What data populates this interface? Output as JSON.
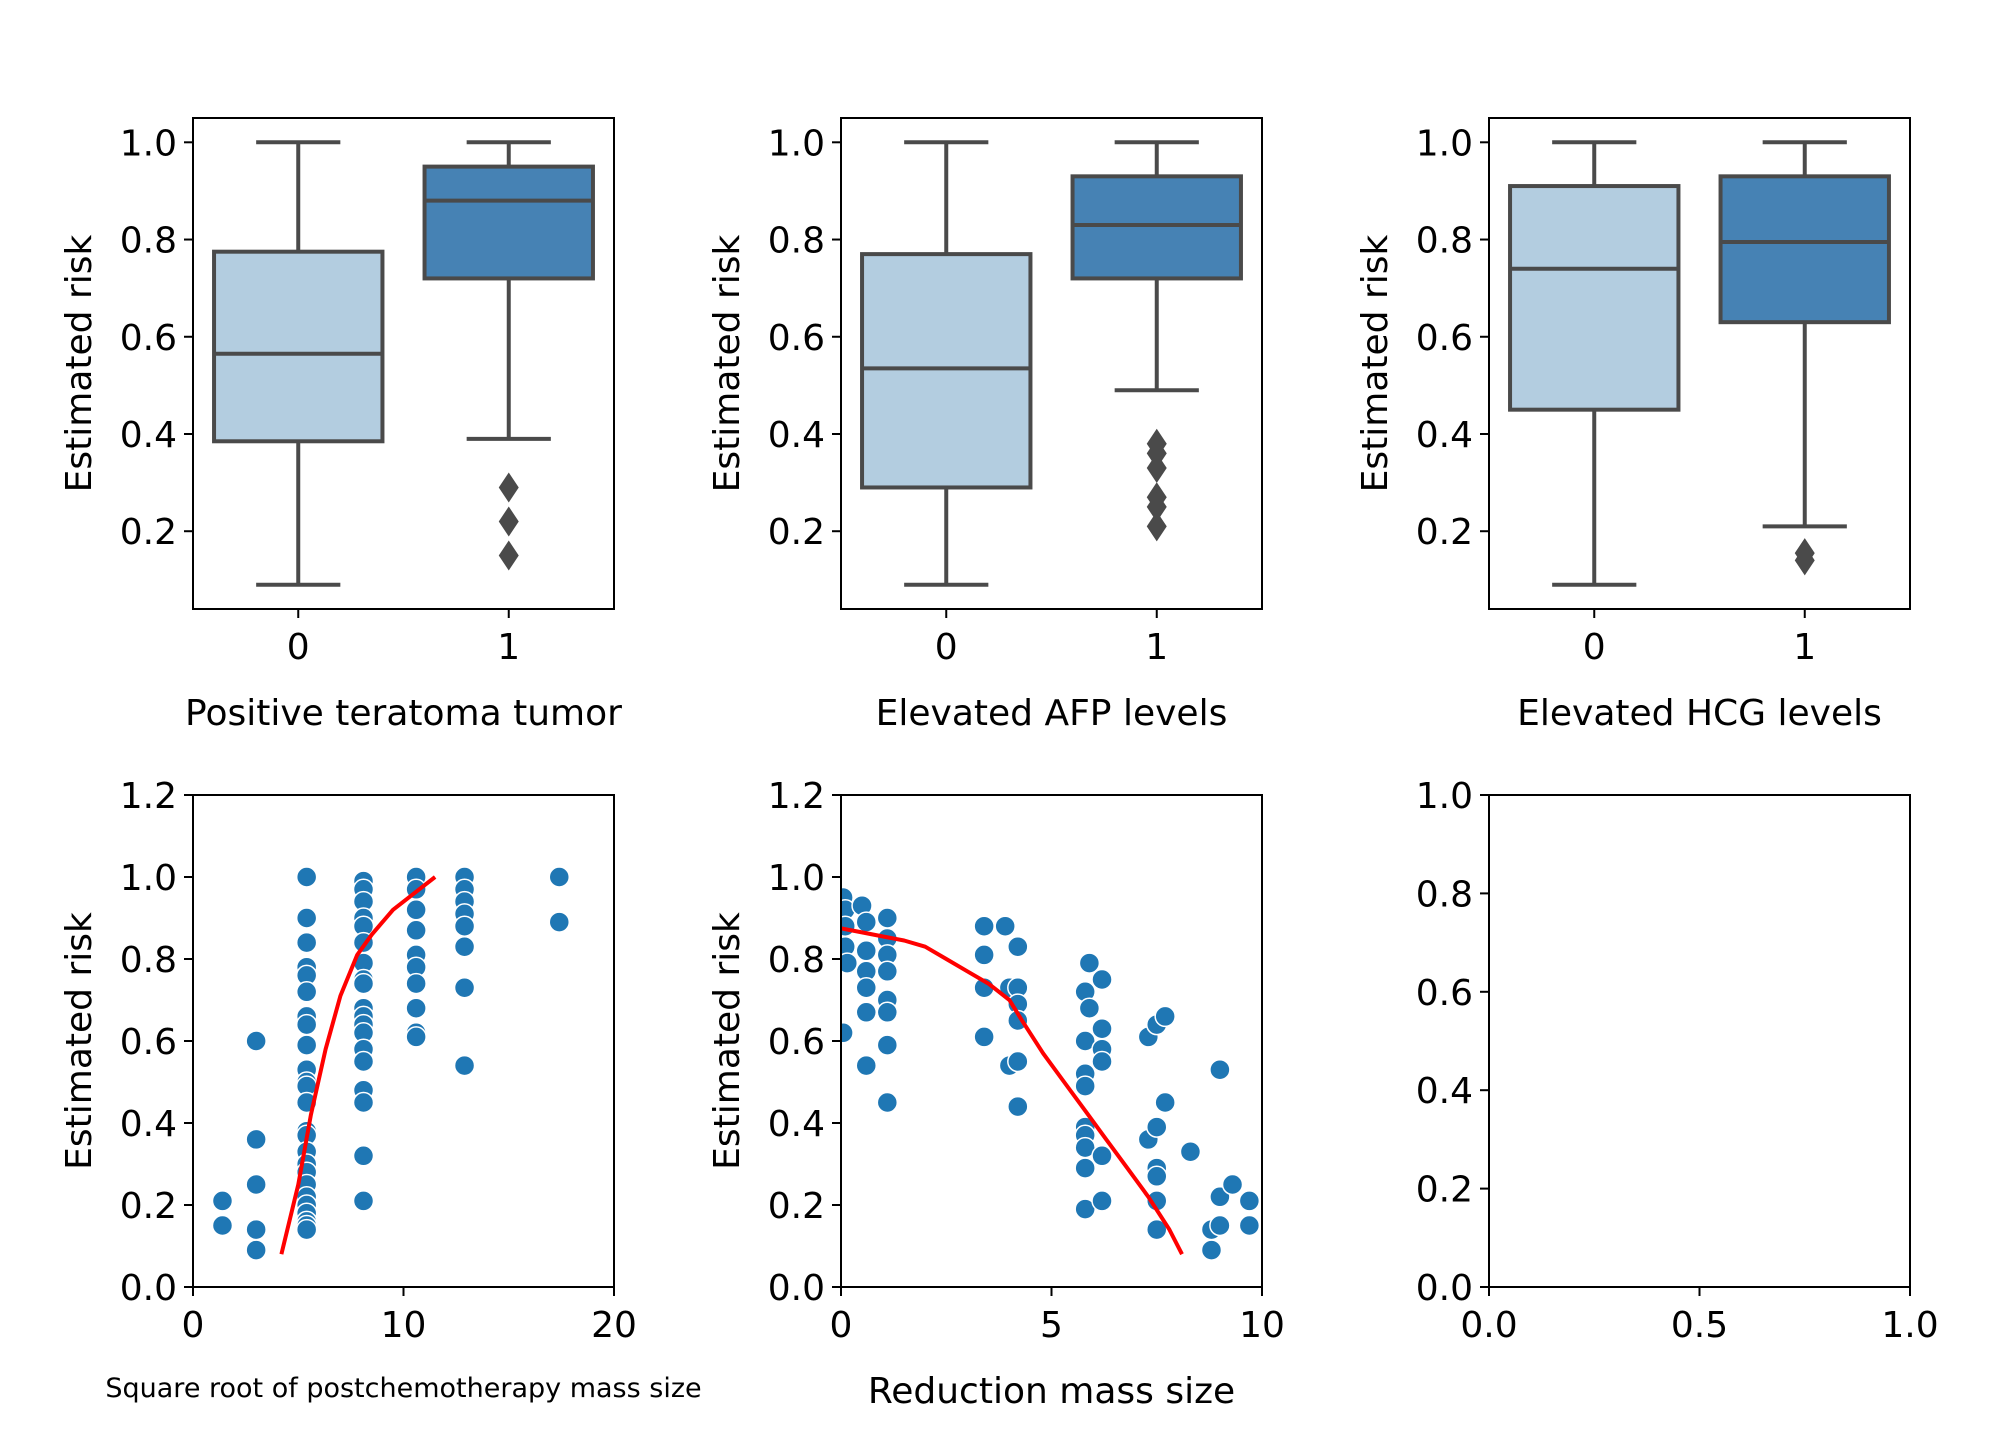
{
  "colors": {
    "box_light": "#b3cde0",
    "box_dark": "#4682b4",
    "box_edge": "#4a4a4a",
    "scatter": "#1f77b4",
    "trend": "#ff0000"
  },
  "chart_data": [
    {
      "type": "box",
      "xlabel": "Positive teratoma tumor",
      "ylabel": "Estimated risk",
      "categories": [
        "0",
        "1"
      ],
      "ylim": [
        0.04,
        1.05
      ],
      "yticks": [
        0.2,
        0.4,
        0.6,
        0.8,
        1.0
      ],
      "ytick_labels": [
        "0.2",
        "0.4",
        "0.6",
        "0.8",
        "1.0"
      ],
      "boxes": [
        {
          "category": "0",
          "whisker_low": 0.09,
          "q1": 0.385,
          "median": 0.565,
          "q3": 0.775,
          "whisker_high": 1.0,
          "outliers": []
        },
        {
          "category": "1",
          "whisker_low": 0.39,
          "q1": 0.72,
          "median": 0.88,
          "q3": 0.95,
          "whisker_high": 1.0,
          "outliers": [
            0.29,
            0.22,
            0.15
          ]
        }
      ]
    },
    {
      "type": "box",
      "xlabel": "Elevated AFP levels",
      "ylabel": "Estimated risk",
      "categories": [
        "0",
        "1"
      ],
      "ylim": [
        0.04,
        1.05
      ],
      "yticks": [
        0.2,
        0.4,
        0.6,
        0.8,
        1.0
      ],
      "ytick_labels": [
        "0.2",
        "0.4",
        "0.6",
        "0.8",
        "1.0"
      ],
      "boxes": [
        {
          "category": "0",
          "whisker_low": 0.09,
          "q1": 0.29,
          "median": 0.535,
          "q3": 0.77,
          "whisker_high": 1.0,
          "outliers": []
        },
        {
          "category": "1",
          "whisker_low": 0.49,
          "q1": 0.72,
          "median": 0.83,
          "q3": 0.93,
          "whisker_high": 1.0,
          "outliers": [
            0.38,
            0.36,
            0.33,
            0.27,
            0.25,
            0.21
          ]
        }
      ]
    },
    {
      "type": "box",
      "xlabel": "Elevated HCG levels",
      "ylabel": "Estimated risk",
      "categories": [
        "0",
        "1"
      ],
      "ylim": [
        0.04,
        1.05
      ],
      "yticks": [
        0.2,
        0.4,
        0.6,
        0.8,
        1.0
      ],
      "ytick_labels": [
        "0.2",
        "0.4",
        "0.6",
        "0.8",
        "1.0"
      ],
      "boxes": [
        {
          "category": "0",
          "whisker_low": 0.09,
          "q1": 0.45,
          "median": 0.74,
          "q3": 0.91,
          "whisker_high": 1.0,
          "outliers": []
        },
        {
          "category": "1",
          "whisker_low": 0.21,
          "q1": 0.63,
          "median": 0.795,
          "q3": 0.93,
          "whisker_high": 1.0,
          "outliers": [
            0.155,
            0.14
          ]
        }
      ]
    },
    {
      "type": "scatter",
      "xlabel": "Square root of postchemotherapy mass size",
      "ylabel": "Estimated risk",
      "xlim": [
        0,
        20
      ],
      "ylim": [
        0.0,
        1.2
      ],
      "xticks": [
        0,
        10,
        20
      ],
      "xtick_labels": [
        "0",
        "10",
        "20"
      ],
      "yticks": [
        0.0,
        0.2,
        0.4,
        0.6,
        0.8,
        1.0,
        1.2
      ],
      "ytick_labels": [
        "0.0",
        "0.2",
        "0.4",
        "0.6",
        "0.8",
        "1.0",
        "1.2"
      ],
      "points": [
        [
          1.4,
          0.21
        ],
        [
          1.4,
          0.15
        ],
        [
          3.0,
          0.6
        ],
        [
          3.0,
          0.36
        ],
        [
          3.0,
          0.25
        ],
        [
          3.0,
          0.14
        ],
        [
          3.0,
          0.09
        ],
        [
          5.4,
          1.0
        ],
        [
          5.4,
          0.9
        ],
        [
          5.4,
          0.84
        ],
        [
          5.4,
          0.78
        ],
        [
          5.4,
          0.76
        ],
        [
          5.4,
          0.72
        ],
        [
          5.4,
          0.66
        ],
        [
          5.4,
          0.64
        ],
        [
          5.4,
          0.59
        ],
        [
          5.4,
          0.53
        ],
        [
          5.4,
          0.5
        ],
        [
          5.4,
          0.49
        ],
        [
          5.4,
          0.45
        ],
        [
          5.4,
          0.38
        ],
        [
          5.4,
          0.37
        ],
        [
          5.4,
          0.33
        ],
        [
          5.4,
          0.3
        ],
        [
          5.4,
          0.28
        ],
        [
          5.4,
          0.25
        ],
        [
          5.4,
          0.22
        ],
        [
          5.4,
          0.2
        ],
        [
          5.4,
          0.18
        ],
        [
          5.4,
          0.16
        ],
        [
          5.4,
          0.15
        ],
        [
          5.4,
          0.14
        ],
        [
          8.1,
          0.99
        ],
        [
          8.1,
          0.97
        ],
        [
          8.1,
          0.94
        ],
        [
          8.1,
          0.9
        ],
        [
          8.1,
          0.88
        ],
        [
          8.1,
          0.84
        ],
        [
          8.1,
          0.79
        ],
        [
          8.1,
          0.75
        ],
        [
          8.1,
          0.74
        ],
        [
          8.1,
          0.68
        ],
        [
          8.1,
          0.66
        ],
        [
          8.1,
          0.64
        ],
        [
          8.1,
          0.62
        ],
        [
          8.1,
          0.58
        ],
        [
          8.1,
          0.55
        ],
        [
          8.1,
          0.48
        ],
        [
          8.1,
          0.45
        ],
        [
          8.1,
          0.32
        ],
        [
          8.1,
          0.21
        ],
        [
          10.6,
          1.0
        ],
        [
          10.6,
          0.97
        ],
        [
          10.6,
          0.92
        ],
        [
          10.6,
          0.87
        ],
        [
          10.6,
          0.81
        ],
        [
          10.6,
          0.78
        ],
        [
          10.6,
          0.74
        ],
        [
          10.6,
          0.68
        ],
        [
          10.6,
          0.62
        ],
        [
          10.6,
          0.61
        ],
        [
          12.9,
          1.0
        ],
        [
          12.9,
          0.97
        ],
        [
          12.9,
          0.94
        ],
        [
          12.9,
          0.91
        ],
        [
          12.9,
          0.88
        ],
        [
          12.9,
          0.83
        ],
        [
          12.9,
          0.73
        ],
        [
          12.9,
          0.54
        ],
        [
          17.4,
          1.0
        ],
        [
          17.4,
          0.89
        ]
      ],
      "trend": [
        [
          4.2,
          0.08
        ],
        [
          5.0,
          0.25
        ],
        [
          5.6,
          0.42
        ],
        [
          6.3,
          0.58
        ],
        [
          7.0,
          0.71
        ],
        [
          7.8,
          0.81
        ],
        [
          8.5,
          0.86
        ],
        [
          9.5,
          0.92
        ],
        [
          10.5,
          0.96
        ],
        [
          11.5,
          1.0
        ]
      ]
    },
    {
      "type": "scatter",
      "xlabel": "Reduction mass size",
      "ylabel": "Estimated risk",
      "xlim": [
        0,
        10
      ],
      "ylim": [
        0.0,
        1.2
      ],
      "xticks": [
        0,
        5,
        10
      ],
      "xtick_labels": [
        "0",
        "5",
        "10"
      ],
      "yticks": [
        0.0,
        0.2,
        0.4,
        0.6,
        0.8,
        1.0,
        1.2
      ],
      "ytick_labels": [
        "0.0",
        "0.2",
        "0.4",
        "0.6",
        "0.8",
        "1.0",
        "1.2"
      ],
      "points": [
        [
          0.05,
          0.95
        ],
        [
          0.1,
          0.92
        ],
        [
          0.1,
          0.88
        ],
        [
          0.1,
          0.83
        ],
        [
          0.05,
          0.62
        ],
        [
          0.15,
          0.79
        ],
        [
          0.5,
          0.93
        ],
        [
          0.6,
          0.89
        ],
        [
          0.6,
          0.82
        ],
        [
          0.6,
          0.77
        ],
        [
          0.6,
          0.73
        ],
        [
          0.6,
          0.67
        ],
        [
          0.6,
          0.54
        ],
        [
          1.1,
          0.9
        ],
        [
          1.1,
          0.85
        ],
        [
          1.1,
          0.81
        ],
        [
          1.1,
          0.77
        ],
        [
          1.1,
          0.7
        ],
        [
          1.1,
          0.67
        ],
        [
          1.1,
          0.59
        ],
        [
          1.1,
          0.45
        ],
        [
          3.4,
          0.88
        ],
        [
          3.4,
          0.81
        ],
        [
          3.4,
          0.73
        ],
        [
          3.4,
          0.61
        ],
        [
          3.9,
          0.88
        ],
        [
          4.0,
          0.73
        ],
        [
          4.0,
          0.54
        ],
        [
          4.2,
          0.83
        ],
        [
          4.2,
          0.73
        ],
        [
          4.2,
          0.69
        ],
        [
          4.2,
          0.65
        ],
        [
          4.2,
          0.55
        ],
        [
          4.2,
          0.44
        ],
        [
          5.9,
          0.79
        ],
        [
          5.8,
          0.72
        ],
        [
          5.9,
          0.68
        ],
        [
          5.8,
          0.6
        ],
        [
          5.8,
          0.52
        ],
        [
          5.8,
          0.49
        ],
        [
          5.8,
          0.39
        ],
        [
          5.8,
          0.37
        ],
        [
          5.8,
          0.34
        ],
        [
          5.8,
          0.29
        ],
        [
          5.8,
          0.19
        ],
        [
          6.2,
          0.75
        ],
        [
          6.2,
          0.63
        ],
        [
          6.2,
          0.58
        ],
        [
          6.2,
          0.55
        ],
        [
          6.2,
          0.32
        ],
        [
          6.2,
          0.21
        ],
        [
          7.3,
          0.61
        ],
        [
          7.5,
          0.64
        ],
        [
          7.7,
          0.66
        ],
        [
          7.3,
          0.36
        ],
        [
          7.5,
          0.39
        ],
        [
          7.5,
          0.29
        ],
        [
          7.5,
          0.27
        ],
        [
          7.5,
          0.21
        ],
        [
          7.5,
          0.14
        ],
        [
          7.7,
          0.45
        ],
        [
          8.3,
          0.33
        ],
        [
          8.8,
          0.09
        ],
        [
          8.8,
          0.14
        ],
        [
          9.0,
          0.15
        ],
        [
          9.0,
          0.22
        ],
        [
          9.0,
          0.53
        ],
        [
          9.3,
          0.25
        ],
        [
          9.7,
          0.21
        ],
        [
          9.7,
          0.15
        ]
      ],
      "trend": [
        [
          0.0,
          0.875
        ],
        [
          0.5,
          0.865
        ],
        [
          1.0,
          0.855
        ],
        [
          1.5,
          0.845
        ],
        [
          2.0,
          0.83
        ],
        [
          2.5,
          0.8
        ],
        [
          3.0,
          0.77
        ],
        [
          3.5,
          0.74
        ],
        [
          4.0,
          0.7
        ],
        [
          4.3,
          0.65
        ],
        [
          4.8,
          0.57
        ],
        [
          5.3,
          0.5
        ],
        [
          5.8,
          0.43
        ],
        [
          6.3,
          0.36
        ],
        [
          6.8,
          0.29
        ],
        [
          7.3,
          0.22
        ],
        [
          7.8,
          0.14
        ],
        [
          8.1,
          0.08
        ]
      ]
    },
    {
      "type": "scatter",
      "xlabel": "",
      "ylabel": "",
      "xlim": [
        0.0,
        1.0
      ],
      "ylim": [
        0.0,
        1.0
      ],
      "xticks": [
        0.0,
        0.5,
        1.0
      ],
      "xtick_labels": [
        "0.0",
        "0.5",
        "1.0"
      ],
      "yticks": [
        0.0,
        0.2,
        0.4,
        0.6,
        0.8,
        1.0
      ],
      "ytick_labels": [
        "0.0",
        "0.2",
        "0.4",
        "0.6",
        "0.8",
        "1.0"
      ],
      "points": [],
      "trend": []
    }
  ]
}
